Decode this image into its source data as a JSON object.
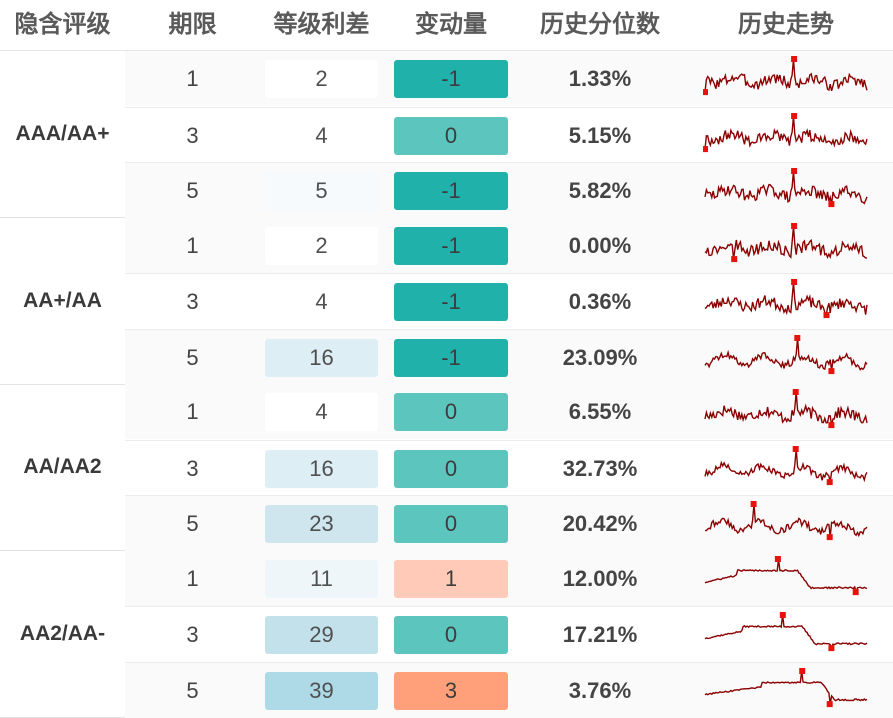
{
  "columns": [
    "隐含评级",
    "期限",
    "等级利差",
    "变动量",
    "历史分位数",
    "历史走势"
  ],
  "colors": {
    "spark_line": "#8b0000",
    "spark_marker": "#e8120c",
    "change_negative": "#20b2aa",
    "change_zero": "#5bc5be",
    "change_one": "#ffcbb8",
    "change_three": "#ffa07a"
  },
  "groups": [
    {
      "grade": "AAA/AA+",
      "rows": [
        {
          "term": "1",
          "spread": "2",
          "change": "-1",
          "percentile": "1.33%",
          "spread_color": "#ffffff",
          "change_color": "#20b2aa",
          "trend": {
            "markers": [
              [
                0.0,
                0.08
              ],
              [
                0.55,
                1.0
              ]
            ],
            "shape": "spiky"
          }
        },
        {
          "term": "3",
          "spread": "4",
          "change": "0",
          "percentile": "5.15%",
          "spread_color": "#ffffff",
          "change_color": "#5bc5be",
          "trend": {
            "markers": [
              [
                0.0,
                0.08
              ],
              [
                0.55,
                1.0
              ]
            ],
            "shape": "spiky"
          }
        },
        {
          "term": "5",
          "spread": "5",
          "change": "-1",
          "percentile": "5.82%",
          "spread_color": "#f6fafc",
          "change_color": "#20b2aa",
          "trend": {
            "markers": [
              [
                0.55,
                1.0
              ],
              [
                0.78,
                0.08
              ]
            ],
            "shape": "spiky"
          }
        }
      ]
    },
    {
      "grade": "AA+/AA",
      "rows": [
        {
          "term": "1",
          "spread": "2",
          "change": "-1",
          "percentile": "0.00%",
          "spread_color": "#ffffff",
          "change_color": "#20b2aa",
          "trend": {
            "markers": [
              [
                0.18,
                0.08
              ],
              [
                0.55,
                1.0
              ]
            ],
            "shape": "spiky"
          }
        },
        {
          "term": "3",
          "spread": "4",
          "change": "-1",
          "percentile": "0.36%",
          "spread_color": "#ffffff",
          "change_color": "#20b2aa",
          "trend": {
            "markers": [
              [
                0.55,
                1.0
              ],
              [
                0.75,
                0.08
              ]
            ],
            "shape": "spiky"
          }
        },
        {
          "term": "5",
          "spread": "16",
          "change": "-1",
          "percentile": "23.09%",
          "spread_color": "#ddeef4",
          "change_color": "#20b2aa",
          "trend": {
            "markers": [
              [
                0.57,
                1.0
              ],
              [
                0.78,
                0.08
              ]
            ],
            "shape": "wavy"
          }
        }
      ]
    },
    {
      "grade": "AA/AA2",
      "rows": [
        {
          "term": "1",
          "spread": "4",
          "change": "0",
          "percentile": "6.55%",
          "spread_color": "#ffffff",
          "change_color": "#5bc5be",
          "trend": {
            "markers": [
              [
                0.56,
                1.0
              ],
              [
                0.78,
                0.08
              ]
            ],
            "shape": "spiky"
          }
        },
        {
          "term": "3",
          "spread": "16",
          "change": "0",
          "percentile": "32.73%",
          "spread_color": "#ddeef4",
          "change_color": "#5bc5be",
          "trend": {
            "markers": [
              [
                0.56,
                1.0
              ],
              [
                0.77,
                0.08
              ]
            ],
            "shape": "wavy"
          }
        },
        {
          "term": "5",
          "spread": "23",
          "change": "0",
          "percentile": "20.42%",
          "spread_color": "#cfe6ef",
          "change_color": "#5bc5be",
          "trend": {
            "markers": [
              [
                0.3,
                1.0
              ],
              [
                0.77,
                0.08
              ]
            ],
            "shape": "wavy"
          }
        }
      ]
    },
    {
      "grade": "AA2/AA-",
      "rows": [
        {
          "term": "1",
          "spread": "11",
          "change": "1",
          "percentile": "12.00%",
          "spread_color": "#eef6f9",
          "change_color": "#ffcbb8",
          "trend": {
            "markers": [
              [
                0.45,
                1.0
              ],
              [
                0.93,
                0.08
              ]
            ],
            "shape": "plateau"
          }
        },
        {
          "term": "3",
          "spread": "29",
          "change": "0",
          "percentile": "17.21%",
          "spread_color": "#c3e1eb",
          "change_color": "#5bc5be",
          "trend": {
            "markers": [
              [
                0.48,
                1.0
              ],
              [
                0.78,
                0.08
              ]
            ],
            "shape": "plateau"
          }
        },
        {
          "term": "5",
          "spread": "39",
          "change": "3",
          "percentile": "3.76%",
          "spread_color": "#addae6",
          "change_color": "#ffa07a",
          "trend": {
            "markers": [
              [
                0.6,
                1.0
              ],
              [
                0.77,
                0.08
              ]
            ],
            "shape": "plateau"
          }
        }
      ]
    }
  ]
}
